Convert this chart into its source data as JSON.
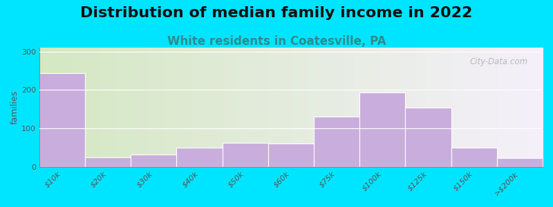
{
  "title": "Distribution of median family income in 2022",
  "subtitle": "White residents in Coatesville, PA",
  "ylabel": "families",
  "categories": [
    "$10k",
    "$20k",
    "$30k",
    "$40k",
    "$50k",
    "$60k",
    "$75k",
    "$100k",
    "$125k",
    "$150k",
    ">$200k"
  ],
  "values": [
    243,
    25,
    32,
    50,
    62,
    60,
    130,
    193,
    153,
    50,
    22
  ],
  "bar_color": "#c9aedd",
  "bar_edge_color": "#ffffff",
  "background_outer": "#00e5ff",
  "background_inner_left": "#d4e8c2",
  "background_inner_right": "#f5f0fa",
  "ylim": [
    0,
    310
  ],
  "yticks": [
    0,
    100,
    200,
    300
  ],
  "title_fontsize": 16,
  "subtitle_fontsize": 12,
  "subtitle_color": "#2e8b8b",
  "watermark": "City-Data.com"
}
